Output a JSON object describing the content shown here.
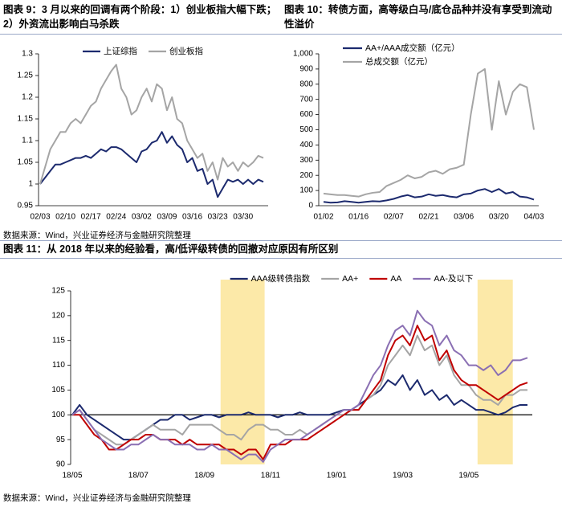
{
  "chart_data": [
    {
      "type": "line",
      "title": "图表 9：3 月以来的回调有两个阶段：1）创业板指大幅下跌；2）外资流出影响白马杀跌",
      "source": "数据来源：Wind，兴业证券经济与金融研究院整理",
      "categories": [
        "02/03",
        null,
        null,
        null,
        null,
        "02/10",
        null,
        null,
        null,
        null,
        "02/17",
        null,
        null,
        null,
        null,
        "02/24",
        null,
        null,
        null,
        null,
        "03/02",
        null,
        null,
        null,
        null,
        "03/09",
        null,
        null,
        null,
        null,
        "03/16",
        null,
        null,
        null,
        null,
        "03/23",
        null,
        null,
        null,
        null,
        "03/30",
        null,
        null,
        null,
        null
      ],
      "series": [
        {
          "name": "上证综指",
          "color": "#1c2a6e",
          "values": [
            1.0,
            1.015,
            1.03,
            1.045,
            1.045,
            1.05,
            1.055,
            1.06,
            1.06,
            1.065,
            1.06,
            1.07,
            1.08,
            1.075,
            1.085,
            1.085,
            1.08,
            1.07,
            1.06,
            1.05,
            1.075,
            1.08,
            1.095,
            1.1,
            1.12,
            1.095,
            1.11,
            1.09,
            1.08,
            1.05,
            1.06,
            1.03,
            1.035,
            1.0,
            1.01,
            0.97,
            0.99,
            1.01,
            1.005,
            1.01,
            1.0,
            1.01,
            1.0,
            1.01,
            1.005
          ]
        },
        {
          "name": "创业板指",
          "color": "#a5a5a5",
          "values": [
            1.0,
            1.04,
            1.08,
            1.1,
            1.12,
            1.12,
            1.14,
            1.15,
            1.14,
            1.16,
            1.18,
            1.19,
            1.22,
            1.24,
            1.26,
            1.275,
            1.22,
            1.2,
            1.16,
            1.17,
            1.2,
            1.22,
            1.19,
            1.23,
            1.22,
            1.17,
            1.2,
            1.15,
            1.14,
            1.1,
            1.08,
            1.06,
            1.07,
            1.03,
            1.05,
            1.01,
            1.06,
            1.04,
            1.05,
            1.03,
            1.05,
            1.04,
            1.05,
            1.065,
            1.06
          ]
        }
      ],
      "ylim": [
        0.95,
        1.3
      ],
      "yticks": [
        0.95,
        1,
        1.05,
        1.1,
        1.15,
        1.2,
        1.25,
        1.3
      ],
      "legend": "top"
    },
    {
      "type": "line",
      "title": "图表 10：转债方面，高等级白马/底仓品种并没有享受到流动性溢价",
      "categories": [
        "01/02",
        null,
        null,
        null,
        null,
        "01/16",
        null,
        null,
        null,
        null,
        "02/07",
        null,
        null,
        null,
        null,
        "02/21",
        null,
        null,
        null,
        null,
        "03/06",
        null,
        null,
        null,
        null,
        "03/20",
        null,
        null,
        null,
        null,
        "04/03"
      ],
      "series": [
        {
          "name": "AA+/AAA成交额（亿元）",
          "color": "#1c2a6e",
          "values": [
            25,
            20,
            22,
            30,
            25,
            20,
            25,
            30,
            28,
            35,
            45,
            60,
            70,
            55,
            60,
            75,
            65,
            70,
            60,
            55,
            75,
            80,
            100,
            110,
            90,
            110,
            80,
            90,
            60,
            55,
            40
          ]
        },
        {
          "name": "总成交额（亿元）",
          "color": "#a5a5a5",
          "values": [
            80,
            75,
            70,
            70,
            65,
            60,
            75,
            85,
            90,
            130,
            150,
            170,
            200,
            180,
            190,
            220,
            230,
            210,
            240,
            250,
            270,
            600,
            870,
            900,
            500,
            820,
            600,
            750,
            800,
            780,
            500
          ]
        }
      ],
      "ylim": [
        0,
        1000
      ],
      "yticks": [
        0,
        100,
        200,
        300,
        400,
        500,
        600,
        700,
        800,
        900,
        {
          "value": 1000,
          "label": "1,000"
        }
      ],
      "legend": "upper left"
    },
    {
      "type": "line",
      "title": "图表 11：从 2018 年以来的经验看，高/低评级转债的回撤对应原因有所区别",
      "source": "数据来源：Wind，兴业证券经济与金融研究院整理",
      "categories": [
        "18/05",
        null,
        null,
        null,
        null,
        null,
        null,
        null,
        null,
        "18/07",
        null,
        null,
        null,
        null,
        null,
        null,
        null,
        null,
        "18/09",
        null,
        null,
        null,
        null,
        null,
        null,
        null,
        null,
        "18/11",
        null,
        null,
        null,
        null,
        null,
        null,
        null,
        null,
        "19/01",
        null,
        null,
        null,
        null,
        null,
        null,
        null,
        null,
        "19/03",
        null,
        null,
        null,
        null,
        null,
        null,
        null,
        null,
        "19/05",
        null,
        null,
        null,
        null,
        null,
        null,
        null,
        null
      ],
      "series": [
        {
          "name": "AAA级转债指数",
          "color": "#1c2a6e",
          "values": [
            100,
            102,
            100,
            99,
            98,
            97,
            96,
            95,
            95,
            96,
            97,
            98,
            99,
            99,
            100,
            100,
            99,
            99.5,
            100,
            100,
            99.5,
            100,
            100,
            100,
            100.5,
            100,
            100,
            100,
            99.5,
            100,
            100,
            100.5,
            100,
            100,
            100,
            100,
            100.5,
            101,
            101,
            102,
            103,
            104,
            105,
            107,
            106,
            108,
            105,
            107,
            104,
            105,
            103,
            104,
            102,
            103,
            102,
            101,
            101,
            100.5,
            100,
            100.5,
            101.5,
            102,
            102
          ]
        },
        {
          "name": "AA+",
          "color": "#a5a5a5",
          "values": [
            100,
            101,
            99,
            97,
            96,
            95,
            94,
            94,
            95,
            96,
            97,
            98,
            97,
            97,
            97,
            96,
            98,
            98,
            98,
            98,
            97,
            96,
            96,
            95,
            97,
            98,
            98,
            97,
            97,
            96,
            96,
            97,
            96,
            97,
            98,
            99,
            100,
            100,
            101,
            101,
            103,
            104,
            106,
            110,
            112,
            114,
            112,
            116,
            113,
            114,
            110,
            112,
            108,
            106,
            106,
            104,
            103,
            103,
            102,
            104,
            104,
            105,
            105
          ]
        },
        {
          "name": "AA",
          "color": "#c00000",
          "values": [
            100,
            100,
            98,
            96,
            95,
            93,
            93,
            94,
            95,
            95,
            96,
            96,
            95,
            95,
            95,
            94,
            95,
            94,
            94,
            94,
            94,
            93,
            93,
            92,
            93,
            93,
            91,
            94,
            94,
            94,
            95,
            95,
            95,
            96,
            97,
            98,
            99,
            100,
            101,
            101,
            103,
            105,
            107,
            112,
            115,
            116,
            114,
            118,
            115,
            116,
            111,
            113,
            109,
            107,
            106,
            106,
            105,
            104,
            103,
            104,
            105,
            106,
            106.5
          ]
        },
        {
          "name": "AA-及以下",
          "color": "#8a6fb3",
          "values": [
            100,
            101,
            99,
            97,
            95,
            94,
            93,
            93,
            94,
            94,
            95,
            96,
            95,
            95,
            94,
            94,
            94,
            93,
            93,
            94,
            93,
            93,
            92,
            91,
            92,
            92,
            90.5,
            93,
            94,
            95,
            95,
            95,
            96,
            97,
            98,
            99,
            100,
            101,
            101,
            102,
            105,
            108,
            110,
            114,
            117,
            118,
            116,
            121,
            119,
            118,
            114,
            116,
            113,
            112,
            110,
            110,
            109,
            110,
            108,
            109,
            111,
            111,
            111.5
          ]
        }
      ],
      "ylim": [
        90,
        125
      ],
      "yticks": [
        90,
        95,
        100,
        105,
        110,
        115,
        120,
        125
      ],
      "x_axis_crosses": 100,
      "highlight_ranges": [
        [
          20.2,
          26.2
        ],
        [
          55.2,
          60
        ]
      ],
      "highlight_color": "#fce9a8",
      "legend": "top"
    }
  ]
}
